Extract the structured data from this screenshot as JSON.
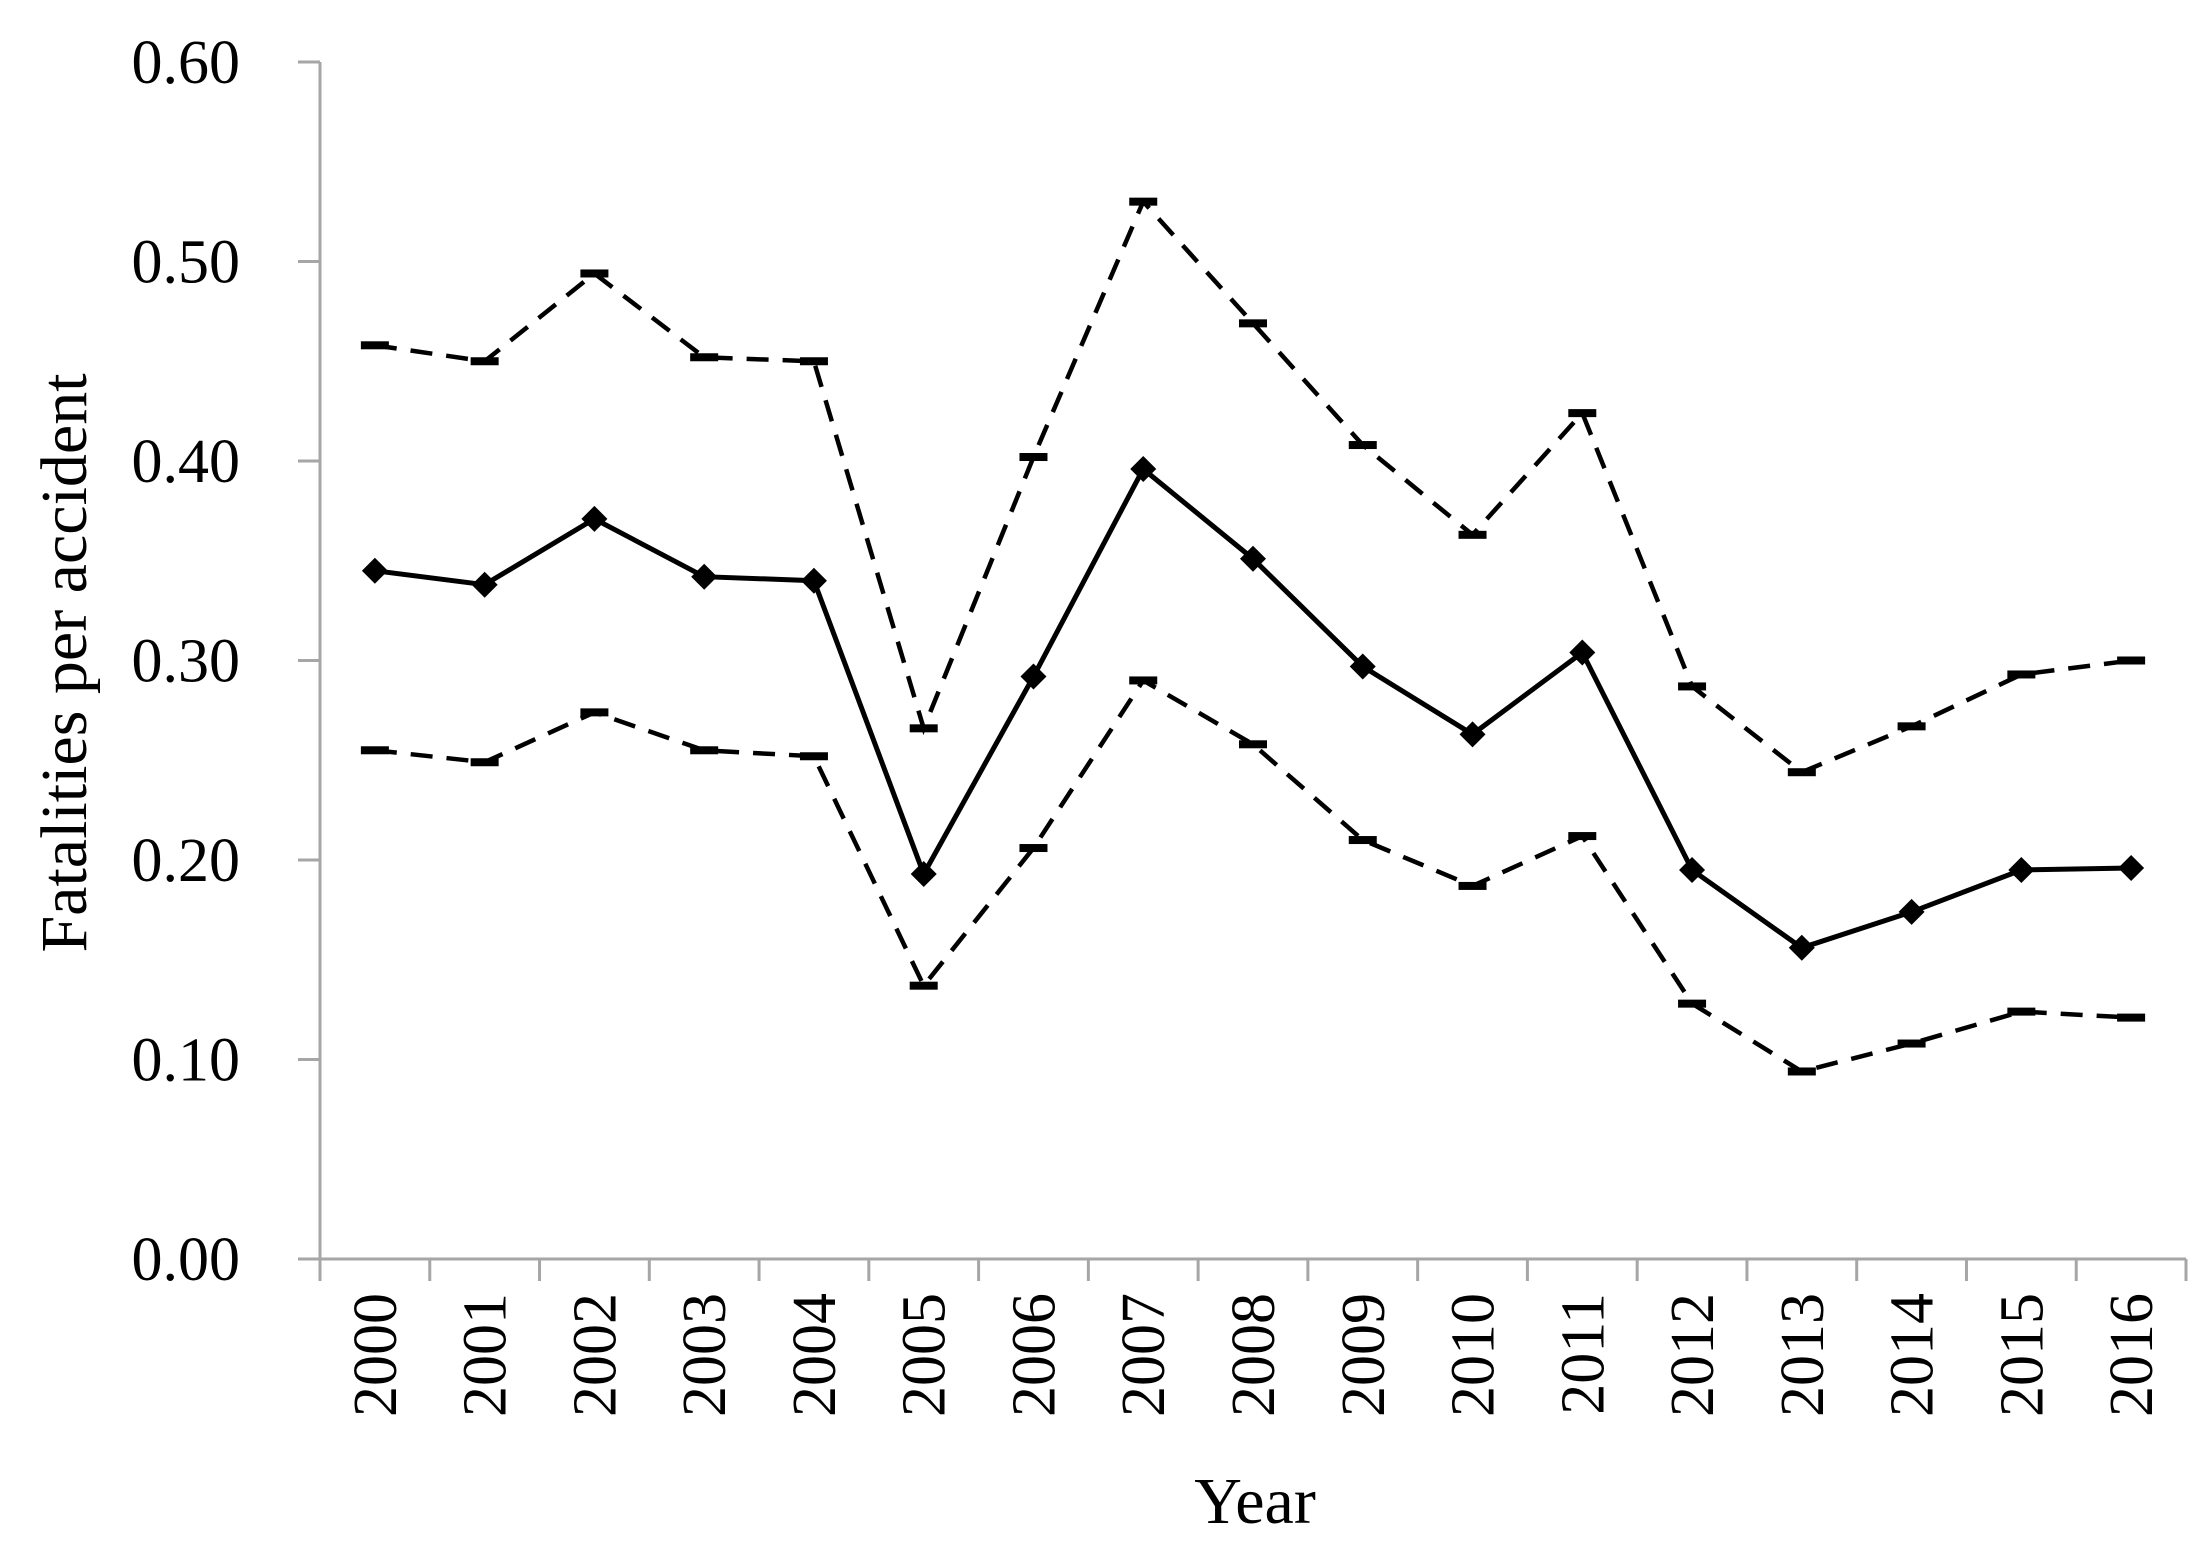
{
  "chart_data": {
    "type": "line",
    "xlabel": "Year",
    "ylabel": "Fatalities per accident",
    "ylim": [
      0,
      0.6
    ],
    "yticks": [
      "0.00",
      "0.10",
      "0.20",
      "0.30",
      "0.40",
      "0.50",
      "0.60"
    ],
    "categories": [
      "2000",
      "2001",
      "2002",
      "2003",
      "2004",
      "2005",
      "2006",
      "2007",
      "2008",
      "2009",
      "2010",
      "2011",
      "2012",
      "2013",
      "2014",
      "2015",
      "2016"
    ],
    "grid": false,
    "legend": "none",
    "series": [
      {
        "style": "solid",
        "marker": "diamond",
        "values": [
          0.345,
          0.338,
          0.371,
          0.342,
          0.34,
          0.193,
          0.292,
          0.396,
          0.351,
          0.297,
          0.263,
          0.304,
          0.195,
          0.156,
          0.174,
          0.195,
          0.196
        ]
      },
      {
        "style": "dashed",
        "marker": "dash",
        "values": [
          0.458,
          0.45,
          0.494,
          0.452,
          0.45,
          0.266,
          0.402,
          0.53,
          0.469,
          0.408,
          0.363,
          0.424,
          0.287,
          0.244,
          0.267,
          0.293,
          0.3
        ]
      },
      {
        "style": "dashed",
        "marker": "dash",
        "values": [
          0.255,
          0.249,
          0.274,
          0.255,
          0.252,
          0.137,
          0.206,
          0.29,
          0.258,
          0.21,
          0.187,
          0.212,
          0.128,
          0.094,
          0.108,
          0.124,
          0.121
        ]
      }
    ],
    "colors": {
      "line": "#000000",
      "axis": "#a6a6a6"
    }
  }
}
